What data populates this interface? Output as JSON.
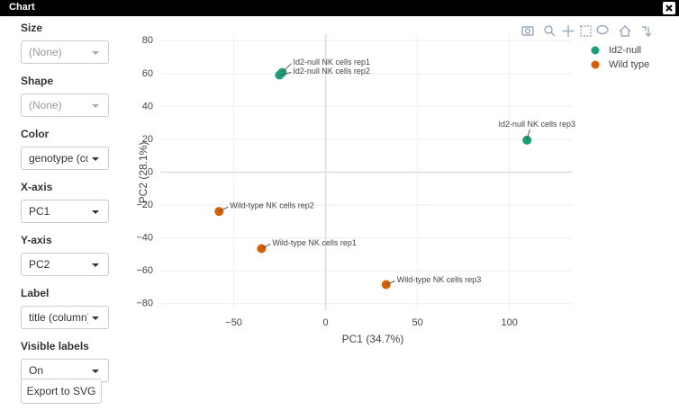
{
  "window": {
    "title": "Chart"
  },
  "controls": [
    {
      "label": "Size",
      "value": "(None)"
    },
    {
      "label": "Shape",
      "value": "(None)"
    },
    {
      "label": "Color",
      "value": "genotype (col"
    },
    {
      "label": "X-axis",
      "value": "PC1"
    },
    {
      "label": "Y-axis",
      "value": "PC2"
    },
    {
      "label": "Label",
      "value": "title (column)"
    },
    {
      "label": "Visible labels",
      "value": "On"
    }
  ],
  "export_button": "Export to SVG",
  "chart_data": {
    "type": "scatter",
    "x_label": "PC1 (34.7%)",
    "y_label": "PC2 (28.1%)",
    "xlim": [
      -90,
      134
    ],
    "ylim": [
      -84,
      84
    ],
    "xticks": [
      {
        "value": -50,
        "label": "−50"
      },
      0,
      50,
      100
    ],
    "yticks": [
      80,
      60,
      40,
      20,
      0,
      {
        "value": -20,
        "label": "−20"
      },
      {
        "value": -40,
        "label": "−40"
      },
      {
        "value": -60,
        "label": "−60"
      },
      {
        "value": -80,
        "label": "−80"
      }
    ],
    "grid": true,
    "legend": "top-right",
    "series": [
      {
        "name": "Id2-null",
        "color": "#1b9e77",
        "x": [
          -23.6,
          -25.1,
          109.6
        ],
        "values": [
          60.7,
          59.1,
          19.5
        ],
        "labels": [
          "Id2-null NK cells rep1",
          "Id2-null NK cells rep2",
          "Id2-null NK cells rep3"
        ]
      },
      {
        "name": "Wild type",
        "color": "#d95f02",
        "x": [
          -58,
          -34.9,
          32.9
        ],
        "values": [
          -23.9,
          -46.5,
          -68.4
        ],
        "labels": [
          "Wild-type NK cells rep2",
          "Wild-type NK cells rep1",
          "Wild-type NK cells rep3"
        ]
      }
    ]
  }
}
